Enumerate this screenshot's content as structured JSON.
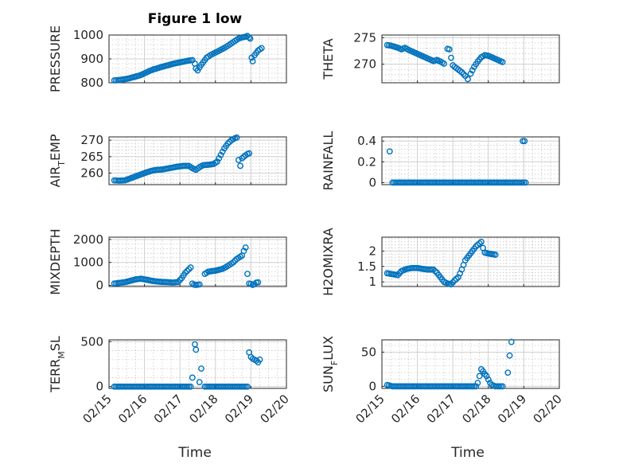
{
  "figure": {
    "title": "Figure 1 low",
    "xlabel": "Time",
    "x_ticks": [
      "02/15",
      "02/16",
      "02/17",
      "02/18",
      "02/19",
      "02/20"
    ],
    "marker_color": "#0072BD"
  },
  "chart_data": [
    {
      "type": "scatter",
      "title": "Figure 1 low",
      "ylabel": "PRESSURE",
      "sub": "",
      "xlim": [
        0,
        5
      ],
      "ylim": [
        800,
        1000
      ],
      "yticks": [
        800,
        900,
        1000
      ],
      "grid": true,
      "points": [
        [
          0.15,
          810
        ],
        [
          0.25,
          811
        ],
        [
          0.35,
          813
        ],
        [
          0.45,
          815
        ],
        [
          0.55,
          818
        ],
        [
          0.65,
          822
        ],
        [
          0.75,
          826
        ],
        [
          0.85,
          830
        ],
        [
          0.95,
          836
        ],
        [
          1.05,
          843
        ],
        [
          1.15,
          850
        ],
        [
          1.25,
          856
        ],
        [
          1.35,
          860
        ],
        [
          1.45,
          865
        ],
        [
          1.55,
          869
        ],
        [
          1.65,
          873
        ],
        [
          1.75,
          877
        ],
        [
          1.85,
          881
        ],
        [
          1.95,
          884
        ],
        [
          2.05,
          887
        ],
        [
          2.15,
          890
        ],
        [
          2.25,
          893
        ],
        [
          2.35,
          895
        ],
        [
          2.42,
          880
        ],
        [
          2.45,
          860
        ],
        [
          2.5,
          852
        ],
        [
          2.55,
          864
        ],
        [
          2.6,
          875
        ],
        [
          2.65,
          885
        ],
        [
          2.75,
          905
        ],
        [
          2.85,
          915
        ],
        [
          2.95,
          923
        ],
        [
          3.05,
          930
        ],
        [
          3.15,
          938
        ],
        [
          3.25,
          946
        ],
        [
          3.35,
          955
        ],
        [
          3.45,
          965
        ],
        [
          3.55,
          975
        ],
        [
          3.65,
          985
        ],
        [
          3.75,
          990
        ],
        [
          3.85,
          993
        ],
        [
          3.9,
          996
        ],
        [
          3.95,
          990
        ],
        [
          3.98,
          985
        ],
        [
          4.02,
          905
        ],
        [
          4.05,
          890
        ],
        [
          4.1,
          915
        ],
        [
          4.15,
          925
        ],
        [
          4.2,
          935
        ],
        [
          4.25,
          940
        ],
        [
          4.3,
          945
        ]
      ]
    },
    {
      "type": "scatter",
      "ylabel": "THETA",
      "sub": "",
      "xlim": [
        0,
        5
      ],
      "ylim": [
        266.5,
        275.5
      ],
      "yticks": [
        270,
        275
      ],
      "grid": true,
      "points": [
        [
          0.15,
          273.6
        ],
        [
          0.25,
          273.5
        ],
        [
          0.35,
          273.3
        ],
        [
          0.45,
          273.1
        ],
        [
          0.55,
          272.8
        ],
        [
          0.65,
          273.1
        ],
        [
          0.75,
          272.7
        ],
        [
          0.85,
          272.4
        ],
        [
          0.95,
          272.1
        ],
        [
          1.05,
          271.8
        ],
        [
          1.15,
          271.5
        ],
        [
          1.25,
          271.2
        ],
        [
          1.35,
          270.9
        ],
        [
          1.45,
          270.6
        ],
        [
          1.55,
          270.8
        ],
        [
          1.65,
          270.5
        ],
        [
          1.75,
          270.1
        ],
        [
          1.85,
          272.9
        ],
        [
          1.9,
          272.8
        ],
        [
          1.95,
          271.2
        ],
        [
          2.0,
          269.8
        ],
        [
          2.05,
          269.5
        ],
        [
          2.15,
          269.0
        ],
        [
          2.25,
          268.5
        ],
        [
          2.35,
          267.8
        ],
        [
          2.42,
          267.2
        ],
        [
          2.5,
          268.2
        ],
        [
          2.6,
          269.5
        ],
        [
          2.7,
          270.5
        ],
        [
          2.8,
          271.3
        ],
        [
          2.9,
          271.7
        ],
        [
          3.0,
          271.6
        ],
        [
          3.1,
          271.3
        ],
        [
          3.2,
          271.0
        ],
        [
          3.3,
          270.7
        ],
        [
          3.4,
          270.4
        ]
      ]
    },
    {
      "type": "scatter",
      "ylabel": "AIR",
      "sub": "T",
      "ylabel_tail": "EMP",
      "xlim": [
        0,
        5
      ],
      "ylim": [
        256.5,
        271
      ],
      "yticks": [
        260,
        265,
        270
      ],
      "grid": true,
      "points": [
        [
          0.15,
          257.8
        ],
        [
          0.3,
          257.7
        ],
        [
          0.45,
          257.8
        ],
        [
          0.6,
          258.4
        ],
        [
          0.75,
          259.0
        ],
        [
          0.9,
          259.6
        ],
        [
          1.05,
          260.2
        ],
        [
          1.2,
          260.7
        ],
        [
          1.35,
          261.0
        ],
        [
          1.5,
          261.1
        ],
        [
          1.65,
          261.4
        ],
        [
          1.8,
          261.7
        ],
        [
          1.95,
          262.0
        ],
        [
          2.1,
          262.2
        ],
        [
          2.25,
          262.2
        ],
        [
          2.35,
          261.5
        ],
        [
          2.45,
          261.0
        ],
        [
          2.55,
          261.8
        ],
        [
          2.65,
          262.4
        ],
        [
          2.75,
          262.5
        ],
        [
          2.85,
          262.6
        ],
        [
          2.95,
          262.8
        ],
        [
          3.05,
          263.5
        ],
        [
          3.15,
          265.5
        ],
        [
          3.25,
          267.5
        ],
        [
          3.35,
          269.0
        ],
        [
          3.45,
          270.0
        ],
        [
          3.55,
          270.6
        ],
        [
          3.6,
          270.8
        ],
        [
          3.65,
          264.0
        ],
        [
          3.7,
          262.2
        ],
        [
          3.75,
          264.5
        ],
        [
          3.8,
          265.0
        ],
        [
          3.85,
          265.4
        ],
        [
          3.9,
          265.8
        ],
        [
          3.95,
          266.0
        ]
      ]
    },
    {
      "type": "scatter",
      "ylabel": "RAINFALL",
      "sub": "",
      "xlim": [
        0,
        5
      ],
      "ylim": [
        -0.02,
        0.44
      ],
      "yticks": [
        0,
        0.2,
        0.4
      ],
      "yticklabels": [
        "0",
        "0.2",
        "0.4"
      ],
      "grid": true,
      "points": [
        [
          0.22,
          0.3
        ],
        [
          0.3,
          0
        ],
        [
          0.6,
          0
        ],
        [
          0.9,
          0
        ],
        [
          1.2,
          0
        ],
        [
          1.5,
          0
        ],
        [
          1.8,
          0
        ],
        [
          2.1,
          0
        ],
        [
          2.4,
          0
        ],
        [
          2.7,
          0
        ],
        [
          3.0,
          0
        ],
        [
          3.3,
          0
        ],
        [
          3.6,
          0
        ],
        [
          3.95,
          0
        ],
        [
          4.05,
          0
        ],
        [
          3.97,
          0.4
        ],
        [
          4.02,
          0.4
        ]
      ]
    },
    {
      "type": "scatter",
      "ylabel": "MIXDEPTH",
      "sub": "",
      "xlim": [
        0,
        5
      ],
      "ylim": [
        -50,
        2100
      ],
      "yticks": [
        0,
        1000,
        2000
      ],
      "grid": true,
      "points": [
        [
          0.15,
          80
        ],
        [
          0.3,
          110
        ],
        [
          0.45,
          140
        ],
        [
          0.6,
          200
        ],
        [
          0.75,
          260
        ],
        [
          0.9,
          290
        ],
        [
          1.05,
          250
        ],
        [
          1.2,
          200
        ],
        [
          1.35,
          170
        ],
        [
          1.5,
          150
        ],
        [
          1.65,
          140
        ],
        [
          1.8,
          120
        ],
        [
          1.95,
          150
        ],
        [
          2.05,
          320
        ],
        [
          2.15,
          550
        ],
        [
          2.25,
          700
        ],
        [
          2.3,
          780
        ],
        [
          2.35,
          80
        ],
        [
          2.4,
          30
        ],
        [
          2.45,
          20
        ],
        [
          2.55,
          40
        ],
        [
          2.7,
          500
        ],
        [
          2.8,
          600
        ],
        [
          2.9,
          620
        ],
        [
          3.0,
          640
        ],
        [
          3.1,
          680
        ],
        [
          3.2,
          720
        ],
        [
          3.3,
          800
        ],
        [
          3.4,
          900
        ],
        [
          3.5,
          1000
        ],
        [
          3.6,
          1150
        ],
        [
          3.7,
          1250
        ],
        [
          3.75,
          1300
        ],
        [
          3.8,
          1500
        ],
        [
          3.85,
          1650
        ],
        [
          3.9,
          500
        ],
        [
          3.95,
          80
        ],
        [
          4.0,
          60
        ],
        [
          4.05,
          20
        ],
        [
          4.1,
          50
        ],
        [
          4.15,
          120
        ],
        [
          4.2,
          130
        ]
      ]
    },
    {
      "type": "scatter",
      "ylabel": "H2OMIXRA",
      "sub": "",
      "xlim": [
        0,
        5
      ],
      "ylim": [
        0.85,
        2.45
      ],
      "yticks": [
        1,
        1.5,
        2
      ],
      "yticklabels": [
        "1",
        "1.5",
        "2"
      ],
      "grid": true,
      "points": [
        [
          0.15,
          1.28
        ],
        [
          0.3,
          1.25
        ],
        [
          0.45,
          1.22
        ],
        [
          0.55,
          1.35
        ],
        [
          0.7,
          1.42
        ],
        [
          0.85,
          1.45
        ],
        [
          1.0,
          1.45
        ],
        [
          1.15,
          1.42
        ],
        [
          1.3,
          1.4
        ],
        [
          1.45,
          1.4
        ],
        [
          1.55,
          1.3
        ],
        [
          1.65,
          1.15
        ],
        [
          1.75,
          1.0
        ],
        [
          1.85,
          0.95
        ],
        [
          1.95,
          0.92
        ],
        [
          2.05,
          1.05
        ],
        [
          2.15,
          1.15
        ],
        [
          2.25,
          1.4
        ],
        [
          2.35,
          1.7
        ],
        [
          2.45,
          1.85
        ],
        [
          2.55,
          2.0
        ],
        [
          2.65,
          2.15
        ],
        [
          2.75,
          2.25
        ],
        [
          2.8,
          2.3
        ],
        [
          2.85,
          2.1
        ],
        [
          2.9,
          1.95
        ],
        [
          3.0,
          1.92
        ],
        [
          3.1,
          1.9
        ],
        [
          3.2,
          1.88
        ]
      ]
    },
    {
      "type": "scatter",
      "ylabel": "TERR",
      "sub": "M",
      "ylabel_tail": "SL",
      "xlim": [
        0,
        5
      ],
      "ylim": [
        -20,
        520
      ],
      "yticks": [
        0,
        500
      ],
      "grid": true,
      "points": [
        [
          0.15,
          0
        ],
        [
          0.4,
          0
        ],
        [
          0.7,
          0
        ],
        [
          1.0,
          0
        ],
        [
          1.3,
          0
        ],
        [
          1.6,
          0
        ],
        [
          1.9,
          0
        ],
        [
          2.1,
          0
        ],
        [
          2.3,
          0
        ],
        [
          2.35,
          100
        ],
        [
          2.42,
          470
        ],
        [
          2.45,
          410
        ],
        [
          2.55,
          50
        ],
        [
          2.6,
          200
        ],
        [
          2.7,
          0
        ],
        [
          3.0,
          0
        ],
        [
          3.3,
          0
        ],
        [
          3.6,
          0
        ],
        [
          3.9,
          0
        ],
        [
          3.95,
          380
        ],
        [
          4.0,
          330
        ],
        [
          4.05,
          310
        ],
        [
          4.1,
          300
        ],
        [
          4.15,
          290
        ],
        [
          4.2,
          270
        ],
        [
          4.25,
          300
        ]
      ]
    },
    {
      "type": "scatter",
      "ylabel": "SUN",
      "sub": "F",
      "ylabel_tail": "LUX",
      "xlim": [
        0,
        5
      ],
      "ylim": [
        -3,
        68
      ],
      "yticks": [
        0,
        50
      ],
      "grid": true,
      "points": [
        [
          0.15,
          2
        ],
        [
          0.3,
          0
        ],
        [
          0.6,
          0
        ],
        [
          0.9,
          0
        ],
        [
          1.2,
          0
        ],
        [
          1.5,
          0
        ],
        [
          1.8,
          0
        ],
        [
          2.1,
          0
        ],
        [
          2.4,
          0
        ],
        [
          2.65,
          0
        ],
        [
          2.7,
          5
        ],
        [
          2.75,
          15
        ],
        [
          2.8,
          25
        ],
        [
          2.85,
          22
        ],
        [
          2.9,
          18
        ],
        [
          2.95,
          15
        ],
        [
          3.0,
          10
        ],
        [
          3.05,
          5
        ],
        [
          3.1,
          2
        ],
        [
          3.2,
          0
        ],
        [
          3.3,
          0
        ],
        [
          3.4,
          0
        ],
        [
          3.55,
          20
        ],
        [
          3.6,
          45
        ],
        [
          3.65,
          65
        ]
      ]
    }
  ]
}
